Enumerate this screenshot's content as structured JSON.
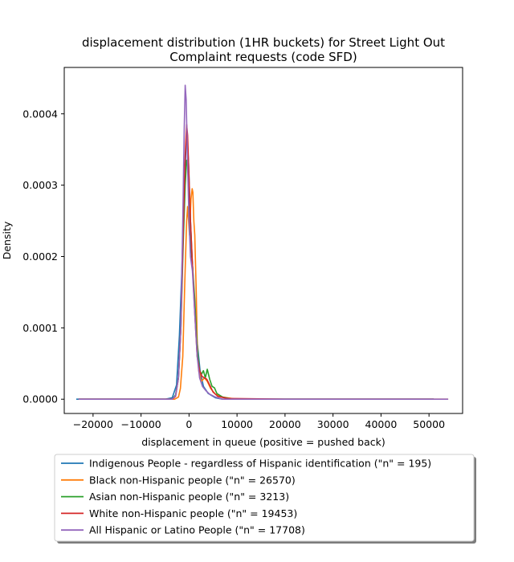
{
  "chart_data": {
    "type": "line",
    "title": "displacement distribution (1HR buckets) for Street Light Out\nComplaint requests (code SFD)",
    "xlabel": "displacement in queue (positive = pushed back)",
    "ylabel": "Density",
    "xlim": [
      -26000,
      57000
    ],
    "ylim": [
      -2e-05,
      0.000465
    ],
    "x_ticks": [
      -20000,
      -10000,
      0,
      10000,
      20000,
      30000,
      40000,
      50000
    ],
    "x_tick_labels": [
      "−20000",
      "−10000",
      "0",
      "10000",
      "20000",
      "30000",
      "40000",
      "50000"
    ],
    "y_ticks": [
      0,
      0.0001,
      0.0002,
      0.0003,
      0.0004
    ],
    "y_tick_labels": [
      "0.0000",
      "0.0001",
      "0.0002",
      "0.0003",
      "0.0004"
    ],
    "grid": false,
    "legend_position": "below-plot",
    "series": [
      {
        "name": "Indigenous People - regardless of Hispanic identification (\"n\" = 195)",
        "color": "#1f77b4",
        "points": [
          [
            -23500,
            0
          ],
          [
            -10000,
            0
          ],
          [
            -5000,
            0
          ],
          [
            -3500,
            2e-06
          ],
          [
            -2600,
            2e-05
          ],
          [
            -2000,
            9e-05
          ],
          [
            -1500,
            0.00018
          ],
          [
            -1000,
            0.00029
          ],
          [
            -600,
            0.00036
          ],
          [
            -400,
            0.00037
          ],
          [
            -100,
            0.00033
          ],
          [
            300,
            0.00025
          ],
          [
            700,
            0.00019
          ],
          [
            1200,
            0.00013
          ],
          [
            1700,
            8e-05
          ],
          [
            2300,
            4e-05
          ],
          [
            3000,
            1.8e-05
          ],
          [
            4000,
            8e-06
          ],
          [
            5500,
            2e-06
          ],
          [
            7000,
            0
          ],
          [
            20000,
            0
          ],
          [
            51000,
            0
          ]
        ]
      },
      {
        "name": "Black non-Hispanic people (\"n\" = 26570)",
        "color": "#ff7f0e",
        "points": [
          [
            -23000,
            0
          ],
          [
            -10000,
            0
          ],
          [
            -3000,
            0
          ],
          [
            -2200,
            3e-06
          ],
          [
            -1800,
            1.5e-05
          ],
          [
            -1300,
            6e-05
          ],
          [
            -900,
            0.00016
          ],
          [
            -500,
            0.00025
          ],
          [
            -300,
            0.00027
          ],
          [
            -100,
            0.00025
          ],
          [
            100,
            0.00023
          ],
          [
            400,
            0.00028
          ],
          [
            650,
            0.000295
          ],
          [
            800,
            0.00029
          ],
          [
            1000,
            0.00025
          ],
          [
            1200,
            0.00023
          ],
          [
            1500,
            0.00015
          ],
          [
            1700,
            8e-05
          ],
          [
            2000,
            4e-05
          ],
          [
            2600,
            2.5e-05
          ],
          [
            3200,
            3e-05
          ],
          [
            3800,
            2.5e-05
          ],
          [
            4500,
            1.5e-05
          ],
          [
            5500,
            7e-06
          ],
          [
            7000,
            3e-06
          ],
          [
            10000,
            0
          ],
          [
            20000,
            0
          ],
          [
            54000,
            0
          ]
        ]
      },
      {
        "name": "Asian non-Hispanic people (\"n\" = 3213)",
        "color": "#2ca02c",
        "points": [
          [
            -23000,
            0
          ],
          [
            -10000,
            0
          ],
          [
            -3500,
            0
          ],
          [
            -2800,
            6e-06
          ],
          [
            -2200,
            3e-05
          ],
          [
            -1700,
            0.0001
          ],
          [
            -1200,
            0.00022
          ],
          [
            -800,
            0.0003
          ],
          [
            -500,
            0.000335
          ],
          [
            -300,
            0.00033
          ],
          [
            0,
            0.00029
          ],
          [
            300,
            0.00022
          ],
          [
            700,
            0.00019
          ],
          [
            1200,
            0.00014
          ],
          [
            1700,
            7e-05
          ],
          [
            2200,
            4e-05
          ],
          [
            2600,
            3.5e-05
          ],
          [
            3000,
            4e-05
          ],
          [
            3400,
            3e-05
          ],
          [
            3800,
            4.2e-05
          ],
          [
            4300,
            2.8e-05
          ],
          [
            4800,
            1.8e-05
          ],
          [
            5300,
            1.6e-05
          ],
          [
            5800,
            8e-06
          ],
          [
            7000,
            3e-06
          ],
          [
            9000,
            0
          ],
          [
            20000,
            0
          ],
          [
            51000,
            0
          ]
        ]
      },
      {
        "name": "White non-Hispanic people (\"n\" = 19453)",
        "color": "#d62728",
        "points": [
          [
            -23000,
            0
          ],
          [
            -10000,
            0
          ],
          [
            -3500,
            0
          ],
          [
            -2800,
            4e-06
          ],
          [
            -2200,
            3e-05
          ],
          [
            -1700,
            0.0001
          ],
          [
            -1200,
            0.00024
          ],
          [
            -800,
            0.00034
          ],
          [
            -500,
            0.000385
          ],
          [
            -300,
            0.00037
          ],
          [
            0,
            0.00031
          ],
          [
            300,
            0.00025
          ],
          [
            700,
            0.00019
          ],
          [
            1200,
            0.00012
          ],
          [
            1700,
            6e-05
          ],
          [
            2200,
            4e-05
          ],
          [
            2700,
            3.2e-05
          ],
          [
            3200,
            3e-05
          ],
          [
            3700,
            2.8e-05
          ],
          [
            4300,
            2e-05
          ],
          [
            5000,
            1e-05
          ],
          [
            6000,
            4e-06
          ],
          [
            8000,
            1e-06
          ],
          [
            20000,
            0
          ],
          [
            51000,
            0
          ]
        ]
      },
      {
        "name": "All Hispanic or Latino People (\"n\" = 17708)",
        "color": "#9467bd",
        "points": [
          [
            -23000,
            0
          ],
          [
            -10000,
            0
          ],
          [
            -3500,
            0
          ],
          [
            -2800,
            5e-06
          ],
          [
            -2200,
            3e-05
          ],
          [
            -1700,
            0.0001
          ],
          [
            -1300,
            0.00025
          ],
          [
            -1000,
            0.00038
          ],
          [
            -800,
            0.00044
          ],
          [
            -600,
            0.00042
          ],
          [
            -300,
            0.00033
          ],
          [
            0,
            0.00025
          ],
          [
            300,
            0.0002
          ],
          [
            700,
            0.00018
          ],
          [
            1200,
            0.00012
          ],
          [
            1700,
            6e-05
          ],
          [
            2200,
            3e-05
          ],
          [
            2800,
            1.8e-05
          ],
          [
            3500,
            1.2e-05
          ],
          [
            4300,
            7e-06
          ],
          [
            5500,
            3e-06
          ],
          [
            7000,
            0
          ],
          [
            20000,
            0
          ],
          [
            54000,
            0
          ]
        ]
      }
    ]
  }
}
